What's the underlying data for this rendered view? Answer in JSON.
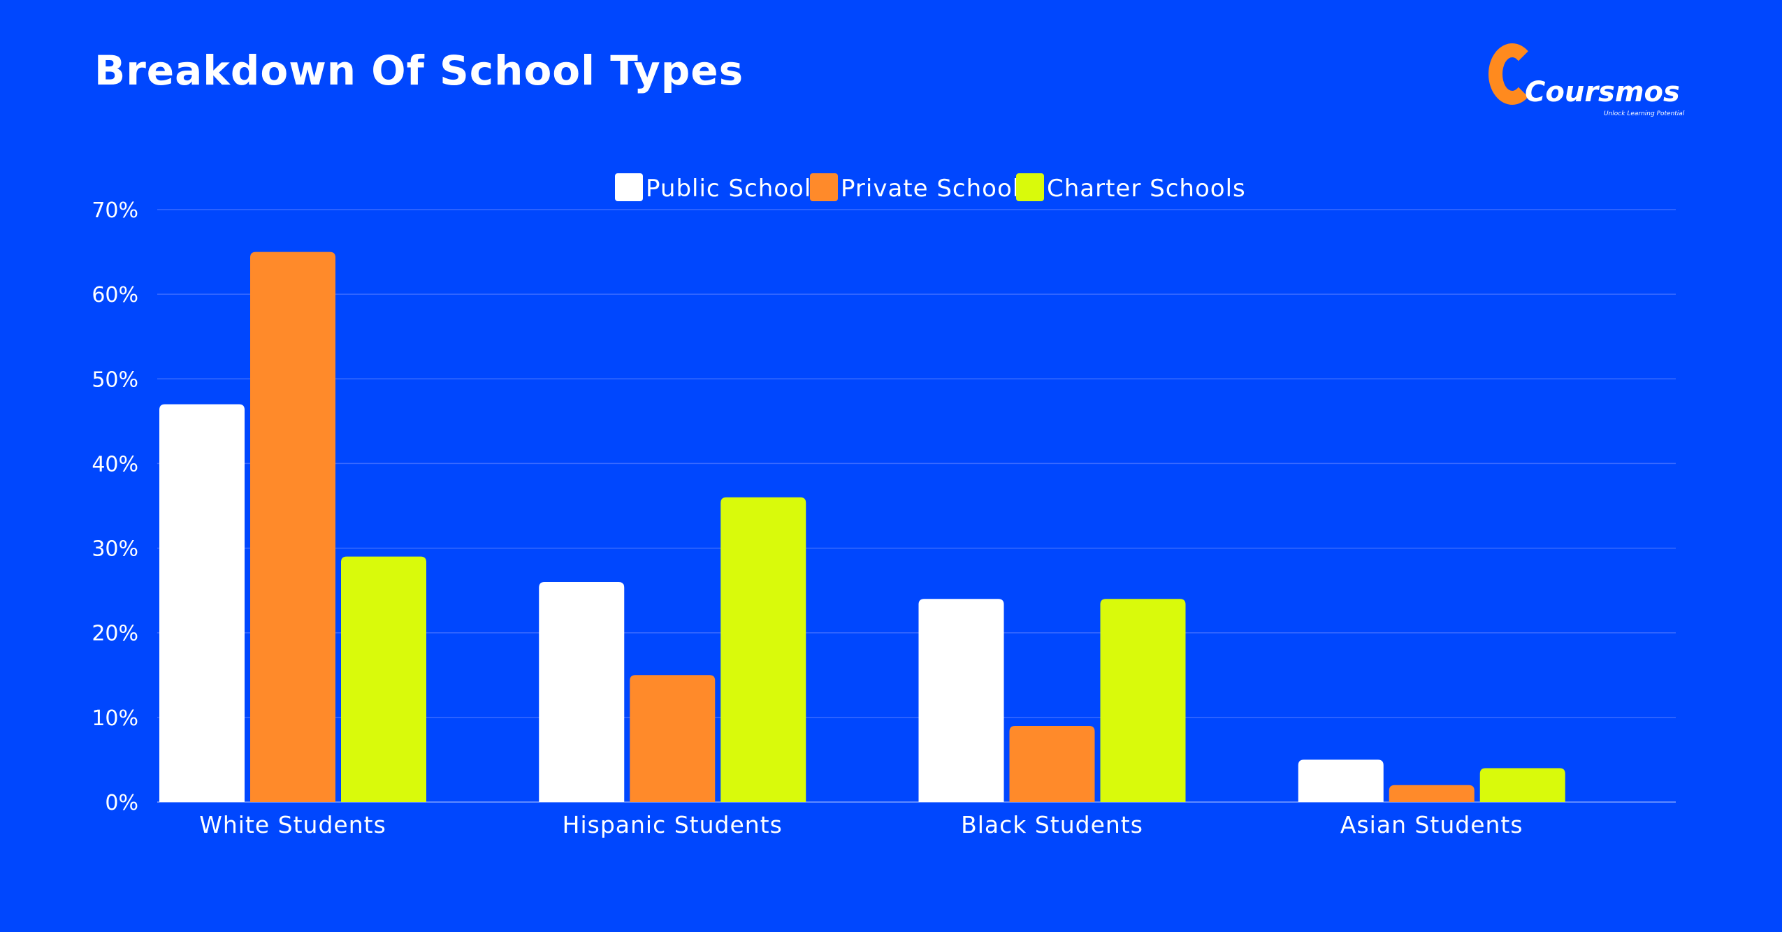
{
  "title": "Breakdown Of School Types",
  "logo": {
    "name": "Coursmos",
    "tagline": "Unlock Learning Potential"
  },
  "colors": {
    "background": "#0047FE",
    "public": "#FFFFFF",
    "private": "#FF8A2A",
    "charter": "#D9FA0B",
    "gridline": "#3A6BFF",
    "logo_accent": "#FF8A1E"
  },
  "chart_data": {
    "type": "bar",
    "title": "Breakdown Of School Types",
    "categories": [
      "White Students",
      "Hispanic Students",
      "Black Students",
      "Asian Students"
    ],
    "series": [
      {
        "name": "Public Schools",
        "color": "#FFFFFF",
        "values": [
          47,
          26,
          24,
          5
        ]
      },
      {
        "name": "Private Schools",
        "color": "#FF8A2A",
        "values": [
          65,
          15,
          9,
          2
        ]
      },
      {
        "name": "Charter Schools",
        "color": "#D9FA0B",
        "values": [
          29,
          36,
          24,
          4
        ]
      }
    ],
    "xlabel": "",
    "ylabel": "",
    "ylim": [
      0,
      70
    ],
    "yticks": [
      "0%",
      "10%",
      "20%",
      "30%",
      "40%",
      "50%",
      "60%",
      "70%"
    ],
    "grid": true,
    "legend": "top-center"
  }
}
